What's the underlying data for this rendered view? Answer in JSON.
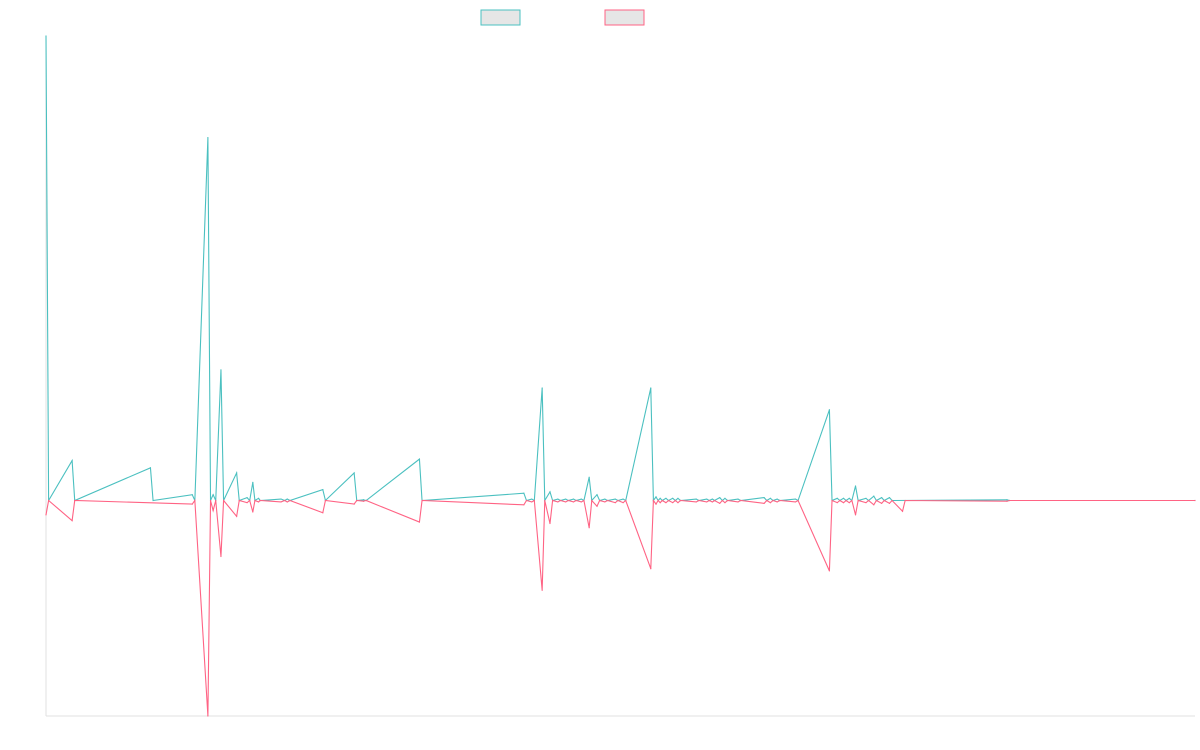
{
  "chart_data": {
    "type": "line",
    "title": "",
    "xlabel": "",
    "ylabel": "",
    "grid": false,
    "legend_position": "top-center",
    "colors": {
      "series_a": "#4bc0c0",
      "series_b": "#ff6384",
      "legend_fill": "#e6e6e6",
      "axis": "#e0e0e0"
    },
    "x_domain": [
      0,
      220
    ],
    "ylim": [
      -300,
      640
    ],
    "series": [
      {
        "color_key": "series_a",
        "values": [
          [
            0,
            640
          ],
          [
            0.5,
            0
          ],
          [
            5,
            55
          ],
          [
            5.5,
            0
          ],
          [
            20,
            45
          ],
          [
            20.5,
            0
          ],
          [
            28,
            8
          ],
          [
            28.5,
            0
          ],
          [
            31,
            500
          ],
          [
            31.5,
            0
          ],
          [
            32,
            8
          ],
          [
            32.5,
            0
          ],
          [
            33.5,
            180
          ],
          [
            34,
            0
          ],
          [
            36.5,
            38
          ],
          [
            37,
            0
          ],
          [
            38.5,
            4
          ],
          [
            39,
            0
          ],
          [
            39.6,
            25
          ],
          [
            40,
            0
          ],
          [
            40.7,
            3
          ],
          [
            41,
            0
          ],
          [
            45,
            2
          ],
          [
            45.7,
            0
          ],
          [
            46.2,
            2
          ],
          [
            46.7,
            0
          ],
          [
            53,
            15
          ],
          [
            53.5,
            0
          ],
          [
            59,
            38
          ],
          [
            59.5,
            0
          ],
          [
            60.8,
            1
          ],
          [
            61.3,
            0
          ],
          [
            71.5,
            57
          ],
          [
            72,
            0
          ],
          [
            91.5,
            10
          ],
          [
            92,
            0
          ],
          [
            93,
            2
          ],
          [
            93.5,
            0
          ],
          [
            95,
            155
          ],
          [
            95.5,
            0
          ],
          [
            96.5,
            12
          ],
          [
            97,
            0
          ],
          [
            98,
            2
          ],
          [
            98.5,
            0
          ],
          [
            99.5,
            2
          ],
          [
            100,
            0
          ],
          [
            101,
            2
          ],
          [
            101.5,
            0
          ],
          [
            102.5,
            2
          ],
          [
            103,
            0
          ],
          [
            104,
            32
          ],
          [
            104.5,
            0
          ],
          [
            105.5,
            8
          ],
          [
            106,
            0
          ],
          [
            107,
            2
          ],
          [
            107.5,
            0
          ],
          [
            109,
            2
          ],
          [
            109.5,
            0
          ],
          [
            110.5,
            2
          ],
          [
            111,
            0
          ],
          [
            115.8,
            155
          ],
          [
            116.3,
            0
          ],
          [
            116.8,
            5
          ],
          [
            117.2,
            0
          ],
          [
            117.6,
            3
          ],
          [
            118,
            0
          ],
          [
            118.7,
            3
          ],
          [
            119.2,
            0
          ],
          [
            120,
            3
          ],
          [
            120.5,
            0
          ],
          [
            121,
            3
          ],
          [
            121.5,
            0
          ],
          [
            124.5,
            2
          ],
          [
            125,
            0
          ],
          [
            126.5,
            2
          ],
          [
            127,
            0
          ],
          [
            127.6,
            2
          ],
          [
            128,
            0
          ],
          [
            129,
            4
          ],
          [
            129.5,
            0
          ],
          [
            130,
            3
          ],
          [
            130.5,
            0
          ],
          [
            132.5,
            2
          ],
          [
            133,
            0
          ],
          [
            137.5,
            4
          ],
          [
            138,
            0
          ],
          [
            138.7,
            3
          ],
          [
            139.2,
            0
          ],
          [
            140,
            2
          ],
          [
            140.5,
            0
          ],
          [
            143.5,
            2
          ],
          [
            144,
            0
          ],
          [
            150,
            125
          ],
          [
            150.5,
            0
          ],
          [
            151.5,
            3
          ],
          [
            152,
            0
          ],
          [
            152.7,
            3
          ],
          [
            153.2,
            0
          ],
          [
            153.8,
            3
          ],
          [
            154.3,
            0
          ],
          [
            155,
            20
          ],
          [
            155.5,
            0
          ],
          [
            157,
            3
          ],
          [
            157.5,
            0
          ],
          [
            158.5,
            6
          ],
          [
            159,
            0
          ],
          [
            160,
            4
          ],
          [
            160.5,
            0
          ],
          [
            161.5,
            4
          ],
          [
            162,
            0
          ],
          [
            184,
            1
          ],
          [
            184.5,
            0
          ],
          [
            220,
            0
          ]
        ]
      },
      {
        "color_key": "series_b",
        "values": [
          [
            0,
            -20
          ],
          [
            0.5,
            0
          ],
          [
            5,
            -28
          ],
          [
            5.5,
            0
          ],
          [
            28,
            -5
          ],
          [
            28.5,
            0
          ],
          [
            31,
            -300
          ],
          [
            31.5,
            0
          ],
          [
            32,
            -14
          ],
          [
            32.5,
            0
          ],
          [
            33.5,
            -78
          ],
          [
            34,
            0
          ],
          [
            36.5,
            -22
          ],
          [
            37,
            0
          ],
          [
            38.5,
            -3
          ],
          [
            39,
            0
          ],
          [
            39.6,
            -16
          ],
          [
            40,
            0
          ],
          [
            40.7,
            -2
          ],
          [
            41,
            0
          ],
          [
            45,
            -2
          ],
          [
            45.7,
            0
          ],
          [
            46.2,
            -2
          ],
          [
            46.7,
            0
          ],
          [
            53,
            -17
          ],
          [
            53.5,
            0
          ],
          [
            59,
            -5
          ],
          [
            59.5,
            0
          ],
          [
            60.8,
            -1
          ],
          [
            61.3,
            0
          ],
          [
            71.5,
            -30
          ],
          [
            72,
            0
          ],
          [
            91.5,
            -6
          ],
          [
            92,
            0
          ],
          [
            93,
            -2
          ],
          [
            93.5,
            0
          ],
          [
            95,
            -125
          ],
          [
            95.5,
            0
          ],
          [
            96.5,
            -32
          ],
          [
            97,
            0
          ],
          [
            98,
            -2
          ],
          [
            98.5,
            0
          ],
          [
            99.5,
            -2
          ],
          [
            100,
            0
          ],
          [
            101,
            -2
          ],
          [
            101.5,
            0
          ],
          [
            102.5,
            -2
          ],
          [
            103,
            0
          ],
          [
            104,
            -38
          ],
          [
            104.5,
            0
          ],
          [
            105.5,
            -8
          ],
          [
            106,
            0
          ],
          [
            107,
            -2
          ],
          [
            107.5,
            0
          ],
          [
            109,
            -3
          ],
          [
            109.5,
            0
          ],
          [
            110.5,
            -3
          ],
          [
            111,
            0
          ],
          [
            115.8,
            -95
          ],
          [
            116.3,
            0
          ],
          [
            116.8,
            -5
          ],
          [
            117.2,
            0
          ],
          [
            117.6,
            -3
          ],
          [
            118,
            0
          ],
          [
            118.7,
            -3
          ],
          [
            119.2,
            0
          ],
          [
            120,
            -3
          ],
          [
            120.5,
            0
          ],
          [
            121,
            -3
          ],
          [
            121.5,
            0
          ],
          [
            124.5,
            -2
          ],
          [
            125,
            0
          ],
          [
            126.5,
            -2
          ],
          [
            127,
            0
          ],
          [
            127.6,
            -2
          ],
          [
            128,
            0
          ],
          [
            129,
            -4
          ],
          [
            129.5,
            0
          ],
          [
            130,
            -3
          ],
          [
            130.5,
            0
          ],
          [
            132.5,
            -2
          ],
          [
            133,
            0
          ],
          [
            137.5,
            -4
          ],
          [
            138,
            0
          ],
          [
            138.7,
            -3
          ],
          [
            139.2,
            0
          ],
          [
            140,
            -2
          ],
          [
            140.5,
            0
          ],
          [
            143.5,
            -2
          ],
          [
            144,
            0
          ],
          [
            150,
            -98
          ],
          [
            150.5,
            0
          ],
          [
            151.5,
            -3
          ],
          [
            152,
            0
          ],
          [
            152.7,
            -3
          ],
          [
            153.2,
            0
          ],
          [
            153.8,
            -3
          ],
          [
            154.3,
            0
          ],
          [
            155,
            -20
          ],
          [
            155.5,
            0
          ],
          [
            157,
            -3
          ],
          [
            157.5,
            0
          ],
          [
            158.5,
            -6
          ],
          [
            159,
            0
          ],
          [
            160,
            -4
          ],
          [
            160.5,
            0
          ],
          [
            161.5,
            -4
          ],
          [
            162,
            0
          ],
          [
            164,
            -15
          ],
          [
            164.5,
            0
          ],
          [
            184,
            -1
          ],
          [
            184.5,
            0
          ],
          [
            220,
            0
          ]
        ]
      }
    ]
  }
}
